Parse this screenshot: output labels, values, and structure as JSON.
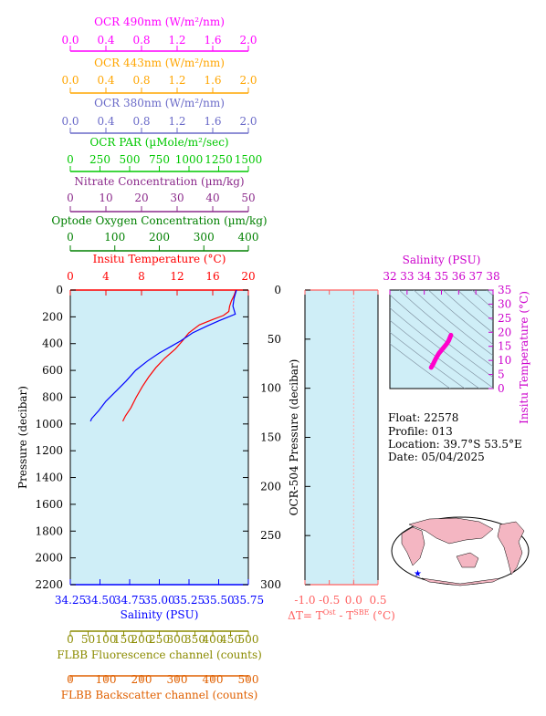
{
  "colors": {
    "ocr490": "#ff00ff",
    "ocr443": "#ffa500",
    "ocr380": "#6a6ac8",
    "par": "#00c800",
    "nitrate": "#8b2a8b",
    "oxygen": "#008000",
    "temperature": "#ff0000",
    "salinity": "#0000ff",
    "fluor": "#8b8b00",
    "backscatter": "#e06000",
    "pink_axis": "#cc00cc",
    "plot_bg": "#cfeef7",
    "delta_axis": "#ff6060",
    "ts_track": "#ff00cc",
    "land": "#f4b6c2",
    "ocean": "#ffffff",
    "marker": "#0000ff"
  },
  "top_axes": [
    {
      "key": "ocr490",
      "title": "OCR 490nm (W/m²/nm)",
      "ticks": [
        "0.0",
        "0.4",
        "0.8",
        "1.2",
        "1.6",
        "2.0"
      ]
    },
    {
      "key": "ocr443",
      "title": "OCR 443nm (W/m²/nm)",
      "ticks": [
        "0.0",
        "0.4",
        "0.8",
        "1.2",
        "1.6",
        "2.0"
      ]
    },
    {
      "key": "ocr380",
      "title": "OCR 380nm (W/m²/nm)",
      "ticks": [
        "0.0",
        "0.4",
        "0.8",
        "1.2",
        "1.6",
        "2.0"
      ]
    },
    {
      "key": "par",
      "title": "OCR PAR (µMole/m²/sec)",
      "ticks": [
        "0",
        "250",
        "500",
        "750",
        "1000",
        "1250",
        "1500"
      ]
    },
    {
      "key": "nitrate",
      "title": "Nitrate Concentration (µm/kg)",
      "ticks": [
        "0",
        "10",
        "20",
        "30",
        "40",
        "50"
      ]
    },
    {
      "key": "oxygen",
      "title": "Optode Oxygen Concentration (µm/kg)",
      "ticks": [
        "0",
        "100",
        "200",
        "300",
        "400"
      ]
    },
    {
      "key": "temperature",
      "title": "Insitu Temperature (°C)",
      "ticks": [
        "0",
        "4",
        "8",
        "12",
        "16",
        "20"
      ]
    }
  ],
  "bottom_axes": [
    {
      "key": "salinity",
      "title": "Salinity (PSU)",
      "ticks": [
        "34.25",
        "34.50",
        "34.75",
        "35.00",
        "35.25",
        "35.50",
        "35.75"
      ]
    },
    {
      "key": "fluor",
      "title": "FLBB Fluorescence channel (counts)",
      "ticks": [
        "0",
        "50",
        "100",
        "150",
        "200",
        "250",
        "300",
        "350",
        "400",
        "450",
        "500"
      ]
    },
    {
      "key": "backscatter",
      "title": "FLBB Backscatter channel (counts)",
      "ticks": [
        "0",
        "100",
        "200",
        "300",
        "400",
        "500"
      ]
    }
  ],
  "main_plot": {
    "ylabel": "Pressure (decibar)",
    "yticks": [
      "0",
      "200",
      "400",
      "600",
      "800",
      "1000",
      "1200",
      "1400",
      "1600",
      "1800",
      "2000",
      "2200"
    ]
  },
  "delta_plot": {
    "ylabel": "OCR-504 Pressure (decibar)",
    "yticks": [
      "0",
      "50",
      "100",
      "150",
      "200",
      "250",
      "300"
    ],
    "xticks": [
      "-1.0",
      "-0.5",
      "0.0",
      "0.5"
    ],
    "xlabel": "ΔT= T",
    "xlabel_sup1": "Ost",
    "xlabel_mid": " - T",
    "xlabel_sup2": "SBE",
    "xlabel_end": " (°C)"
  },
  "ts_plot": {
    "title": "Salinity (PSU)",
    "xticks": [
      "32",
      "33",
      "34",
      "35",
      "36",
      "37",
      "38"
    ],
    "yticks": [
      "0",
      "5",
      "10",
      "15",
      "20",
      "25",
      "30",
      "35"
    ],
    "ylabel": "Insitu Temperature (°C)"
  },
  "info": {
    "float": "Float:  22578",
    "profile": "Profile:  013",
    "location": "Location:  39.7°S  53.5°E",
    "date": "Date:  05/04/2025"
  },
  "chart_data": [
    {
      "type": "line",
      "series": [
        {
          "name": "Insitu Temperature (°C)",
          "x_axis": "temperature",
          "x_range": [
            0,
            20
          ],
          "points": [
            [
              18.6,
              0
            ],
            [
              18.4,
              40
            ],
            [
              18.1,
              80
            ],
            [
              17.9,
              120
            ],
            [
              17.8,
              160
            ],
            [
              17.2,
              190
            ],
            [
              16.0,
              220
            ],
            [
              14.5,
              260
            ],
            [
              13.3,
              320
            ],
            [
              12.6,
              380
            ],
            [
              11.8,
              440
            ],
            [
              10.6,
              510
            ],
            [
              9.6,
              580
            ],
            [
              8.8,
              650
            ],
            [
              8.1,
              720
            ],
            [
              7.4,
              800
            ],
            [
              6.8,
              880
            ],
            [
              6.2,
              940
            ],
            [
              5.9,
              980
            ]
          ]
        },
        {
          "name": "Salinity (PSU)",
          "x_axis": "salinity",
          "x_range": [
            34.25,
            35.75
          ],
          "points": [
            [
              35.65,
              0
            ],
            [
              35.63,
              60
            ],
            [
              35.62,
              120
            ],
            [
              35.64,
              180
            ],
            [
              35.5,
              230
            ],
            [
              35.4,
              270
            ],
            [
              35.28,
              320
            ],
            [
              35.18,
              380
            ],
            [
              35.1,
              420
            ],
            [
              35.0,
              470
            ],
            [
              34.9,
              530
            ],
            [
              34.8,
              600
            ],
            [
              34.72,
              680
            ],
            [
              34.63,
              760
            ],
            [
              34.55,
              830
            ],
            [
              34.49,
              900
            ],
            [
              34.43,
              960
            ],
            [
              34.42,
              980
            ]
          ]
        }
      ],
      "ylabel": "Pressure (decibar)",
      "ylim": [
        0,
        2200
      ],
      "y_inverted": true
    },
    {
      "type": "line",
      "xlim": [
        -1.0,
        0.5
      ],
      "ylim": [
        0,
        300
      ],
      "y_inverted": true,
      "series": []
    },
    {
      "type": "scatter",
      "xlim": [
        32,
        38
      ],
      "ylim": [
        0,
        35
      ],
      "points": [
        [
          34.4,
          7.5
        ],
        [
          34.5,
          8.5
        ],
        [
          34.6,
          9.8
        ],
        [
          34.7,
          11
        ],
        [
          34.85,
          12.5
        ],
        [
          35.0,
          13.6
        ],
        [
          35.15,
          14.7
        ],
        [
          35.3,
          15.8
        ],
        [
          35.42,
          17
        ],
        [
          35.5,
          18.2
        ],
        [
          35.55,
          19
        ]
      ]
    }
  ]
}
